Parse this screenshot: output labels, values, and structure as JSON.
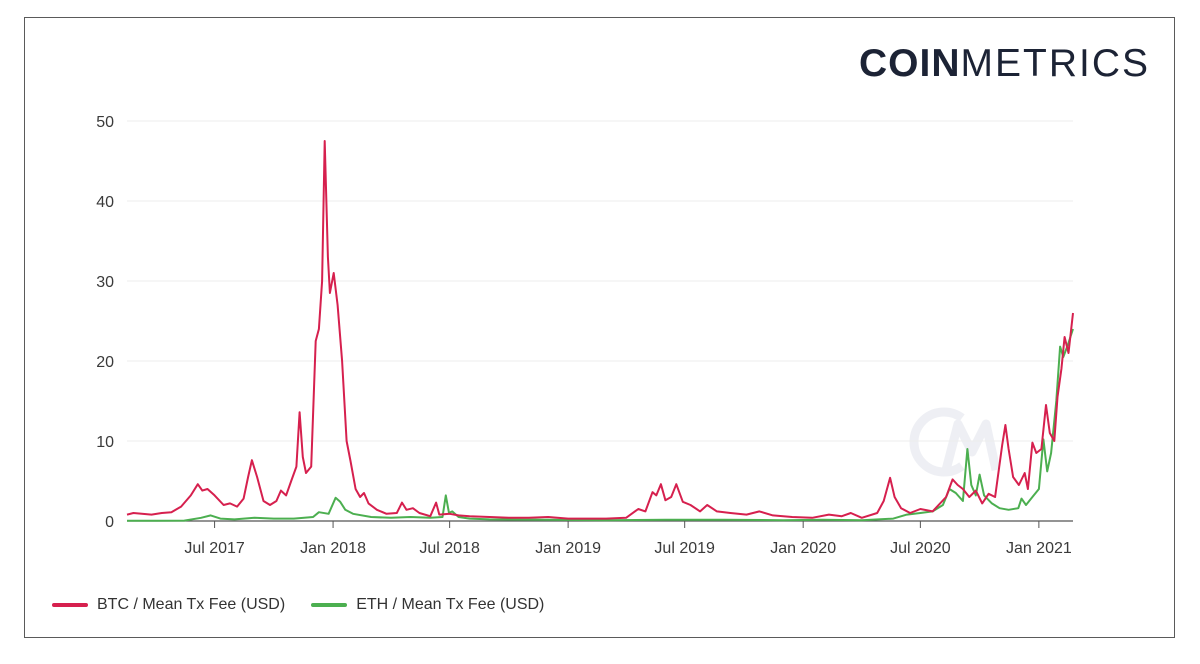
{
  "logo": {
    "bold": "COIN",
    "light": "METRICS"
  },
  "chart_data": {
    "type": "line",
    "title": "",
    "xlabel": "",
    "ylabel": "",
    "ylim": [
      0,
      50
    ],
    "y_ticks": [
      0,
      10,
      20,
      30,
      40,
      50
    ],
    "x_tick_labels": [
      "Jul 2017",
      "Jan 2018",
      "Jul 2018",
      "Jan 2019",
      "Jul 2019",
      "Jan 2020",
      "Jul 2020",
      "Jan 2021"
    ],
    "x_tick_dates": [
      "2017-07-01",
      "2018-01-01",
      "2018-07-01",
      "2019-01-01",
      "2019-07-01",
      "2020-01-01",
      "2020-07-01",
      "2021-01-01"
    ],
    "xlim": [
      "2017-02-15",
      "2021-02-23"
    ],
    "grid": "horizontal",
    "legend_position": "bottom-left",
    "series": [
      {
        "name": "BTC / Mean Tx Fee (USD)",
        "color": "#d6204e",
        "points": [
          [
            "2017-02-15",
            0.8
          ],
          [
            "2017-02-25",
            1.0
          ],
          [
            "2017-03-10",
            0.9
          ],
          [
            "2017-03-25",
            0.8
          ],
          [
            "2017-04-10",
            1.0
          ],
          [
            "2017-04-25",
            1.1
          ],
          [
            "2017-05-10",
            1.8
          ],
          [
            "2017-05-25",
            3.2
          ],
          [
            "2017-06-05",
            4.6
          ],
          [
            "2017-06-12",
            3.8
          ],
          [
            "2017-06-20",
            4.0
          ],
          [
            "2017-07-01",
            3.2
          ],
          [
            "2017-07-15",
            2.0
          ],
          [
            "2017-07-25",
            2.2
          ],
          [
            "2017-08-05",
            1.8
          ],
          [
            "2017-08-15",
            2.8
          ],
          [
            "2017-08-22",
            5.5
          ],
          [
            "2017-08-28",
            7.6
          ],
          [
            "2017-09-05",
            5.5
          ],
          [
            "2017-09-15",
            2.5
          ],
          [
            "2017-09-25",
            2.0
          ],
          [
            "2017-10-05",
            2.5
          ],
          [
            "2017-10-12",
            3.8
          ],
          [
            "2017-10-20",
            3.2
          ],
          [
            "2017-10-28",
            5.0
          ],
          [
            "2017-11-05",
            6.8
          ],
          [
            "2017-11-10",
            13.6
          ],
          [
            "2017-11-15",
            8.0
          ],
          [
            "2017-11-20",
            6.0
          ],
          [
            "2017-11-28",
            6.8
          ],
          [
            "2017-12-05",
            22.5
          ],
          [
            "2017-12-10",
            24.0
          ],
          [
            "2017-12-15",
            30.0
          ],
          [
            "2017-12-19",
            47.5
          ],
          [
            "2017-12-24",
            33.0
          ],
          [
            "2017-12-27",
            28.5
          ],
          [
            "2018-01-02",
            31.0
          ],
          [
            "2018-01-08",
            27.0
          ],
          [
            "2018-01-15",
            20.0
          ],
          [
            "2018-01-22",
            10.0
          ],
          [
            "2018-01-28",
            7.5
          ],
          [
            "2018-02-05",
            4.0
          ],
          [
            "2018-02-12",
            3.0
          ],
          [
            "2018-02-18",
            3.5
          ],
          [
            "2018-02-25",
            2.2
          ],
          [
            "2018-03-10",
            1.4
          ],
          [
            "2018-03-25",
            0.9
          ],
          [
            "2018-04-10",
            1.0
          ],
          [
            "2018-04-18",
            2.3
          ],
          [
            "2018-04-25",
            1.4
          ],
          [
            "2018-05-05",
            1.6
          ],
          [
            "2018-05-15",
            1.0
          ],
          [
            "2018-06-01",
            0.6
          ],
          [
            "2018-06-10",
            2.3
          ],
          [
            "2018-06-15",
            0.8
          ],
          [
            "2018-07-01",
            0.9
          ],
          [
            "2018-07-15",
            0.7
          ],
          [
            "2018-08-01",
            0.6
          ],
          [
            "2018-09-01",
            0.5
          ],
          [
            "2018-10-01",
            0.4
          ],
          [
            "2018-11-01",
            0.4
          ],
          [
            "2018-12-01",
            0.5
          ],
          [
            "2019-01-01",
            0.3
          ],
          [
            "2019-02-01",
            0.3
          ],
          [
            "2019-03-01",
            0.3
          ],
          [
            "2019-04-01",
            0.4
          ],
          [
            "2019-04-20",
            1.5
          ],
          [
            "2019-05-01",
            1.2
          ],
          [
            "2019-05-12",
            3.6
          ],
          [
            "2019-05-18",
            3.2
          ],
          [
            "2019-05-25",
            4.6
          ],
          [
            "2019-06-01",
            2.6
          ],
          [
            "2019-06-10",
            3.0
          ],
          [
            "2019-06-18",
            4.6
          ],
          [
            "2019-06-28",
            2.4
          ],
          [
            "2019-07-10",
            2.0
          ],
          [
            "2019-07-25",
            1.2
          ],
          [
            "2019-08-05",
            2.0
          ],
          [
            "2019-08-20",
            1.2
          ],
          [
            "2019-09-10",
            1.0
          ],
          [
            "2019-10-05",
            0.8
          ],
          [
            "2019-10-25",
            1.2
          ],
          [
            "2019-11-15",
            0.7
          ],
          [
            "2019-12-15",
            0.5
          ],
          [
            "2020-01-15",
            0.4
          ],
          [
            "2020-02-10",
            0.8
          ],
          [
            "2020-03-01",
            0.6
          ],
          [
            "2020-03-15",
            1.0
          ],
          [
            "2020-04-01",
            0.4
          ],
          [
            "2020-04-25",
            1.0
          ],
          [
            "2020-05-05",
            2.5
          ],
          [
            "2020-05-15",
            5.4
          ],
          [
            "2020-05-22",
            3.0
          ],
          [
            "2020-06-01",
            1.6
          ],
          [
            "2020-06-15",
            1.0
          ],
          [
            "2020-07-01",
            1.5
          ],
          [
            "2020-07-20",
            1.2
          ],
          [
            "2020-08-10",
            3.0
          ],
          [
            "2020-08-20",
            5.2
          ],
          [
            "2020-08-28",
            4.5
          ],
          [
            "2020-09-05",
            4.0
          ],
          [
            "2020-09-15",
            3.0
          ],
          [
            "2020-09-25",
            3.8
          ],
          [
            "2020-10-05",
            2.2
          ],
          [
            "2020-10-15",
            3.4
          ],
          [
            "2020-10-25",
            3.0
          ],
          [
            "2020-11-05",
            9.5
          ],
          [
            "2020-11-10",
            12.0
          ],
          [
            "2020-11-15",
            9.0
          ],
          [
            "2020-11-22",
            5.5
          ],
          [
            "2020-12-01",
            4.5
          ],
          [
            "2020-12-10",
            6.0
          ],
          [
            "2020-12-15",
            4.0
          ],
          [
            "2020-12-22",
            9.8
          ],
          [
            "2020-12-28",
            8.5
          ],
          [
            "2021-01-05",
            9.0
          ],
          [
            "2021-01-12",
            14.5
          ],
          [
            "2021-01-18",
            11.0
          ],
          [
            "2021-01-25",
            10.0
          ],
          [
            "2021-01-30",
            15.5
          ],
          [
            "2021-02-05",
            19.0
          ],
          [
            "2021-02-10",
            23.0
          ],
          [
            "2021-02-16",
            21.0
          ],
          [
            "2021-02-23",
            26.0
          ]
        ]
      },
      {
        "name": "ETH / Mean Tx Fee (USD)",
        "color": "#4caf50",
        "points": [
          [
            "2017-02-15",
            0.02
          ],
          [
            "2017-04-01",
            0.03
          ],
          [
            "2017-05-15",
            0.05
          ],
          [
            "2017-06-10",
            0.4
          ],
          [
            "2017-06-25",
            0.7
          ],
          [
            "2017-07-10",
            0.3
          ],
          [
            "2017-08-01",
            0.2
          ],
          [
            "2017-09-01",
            0.4
          ],
          [
            "2017-10-01",
            0.3
          ],
          [
            "2017-11-01",
            0.3
          ],
          [
            "2017-12-01",
            0.5
          ],
          [
            "2017-12-10",
            1.1
          ],
          [
            "2017-12-25",
            0.9
          ],
          [
            "2018-01-05",
            2.9
          ],
          [
            "2018-01-12",
            2.4
          ],
          [
            "2018-01-20",
            1.4
          ],
          [
            "2018-02-01",
            0.9
          ],
          [
            "2018-03-01",
            0.5
          ],
          [
            "2018-04-01",
            0.4
          ],
          [
            "2018-05-01",
            0.5
          ],
          [
            "2018-06-01",
            0.4
          ],
          [
            "2018-06-20",
            0.5
          ],
          [
            "2018-06-25",
            3.2
          ],
          [
            "2018-06-30",
            1.0
          ],
          [
            "2018-07-05",
            1.2
          ],
          [
            "2018-07-15",
            0.5
          ],
          [
            "2018-08-01",
            0.3
          ],
          [
            "2018-09-01",
            0.2
          ],
          [
            "2018-12-01",
            0.15
          ],
          [
            "2019-03-01",
            0.1
          ],
          [
            "2019-06-01",
            0.15
          ],
          [
            "2019-09-01",
            0.15
          ],
          [
            "2019-12-01",
            0.1
          ],
          [
            "2020-02-01",
            0.15
          ],
          [
            "2020-04-01",
            0.1
          ],
          [
            "2020-05-20",
            0.3
          ],
          [
            "2020-06-10",
            0.8
          ],
          [
            "2020-07-01",
            1.0
          ],
          [
            "2020-07-20",
            1.2
          ],
          [
            "2020-08-05",
            2.0
          ],
          [
            "2020-08-15",
            4.0
          ],
          [
            "2020-08-25",
            3.5
          ],
          [
            "2020-09-05",
            2.5
          ],
          [
            "2020-09-12",
            9.0
          ],
          [
            "2020-09-18",
            4.5
          ],
          [
            "2020-09-25",
            3.2
          ],
          [
            "2020-10-01",
            5.8
          ],
          [
            "2020-10-08",
            3.2
          ],
          [
            "2020-10-20",
            2.2
          ],
          [
            "2020-11-01",
            1.6
          ],
          [
            "2020-11-15",
            1.4
          ],
          [
            "2020-11-30",
            1.6
          ],
          [
            "2020-12-05",
            2.8
          ],
          [
            "2020-12-12",
            2.0
          ],
          [
            "2020-12-22",
            3.0
          ],
          [
            "2021-01-01",
            4.0
          ],
          [
            "2021-01-08",
            10.2
          ],
          [
            "2021-01-14",
            6.2
          ],
          [
            "2021-01-20",
            8.5
          ],
          [
            "2021-01-28",
            15.0
          ],
          [
            "2021-02-03",
            21.8
          ],
          [
            "2021-02-08",
            20.5
          ],
          [
            "2021-02-15",
            22.0
          ],
          [
            "2021-02-23",
            24.0
          ]
        ]
      }
    ]
  }
}
